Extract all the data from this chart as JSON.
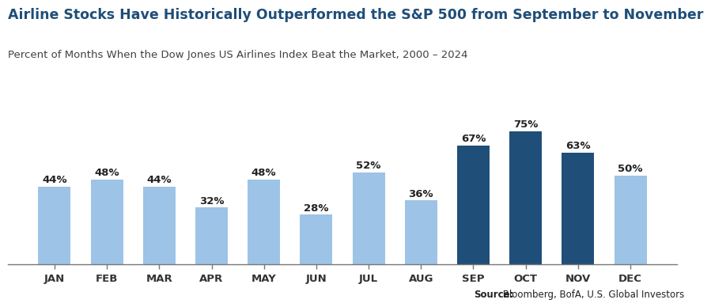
{
  "title": "Airline Stocks Have Historically Outperformed the S&P 500 from September to November",
  "subtitle": "Percent of Months When the Dow Jones US Airlines Index Beat the Market, 2000 – 2024",
  "source_bold": "Source:",
  "source_rest": " Bloomberg, BofA, U.S. Global Investors",
  "categories": [
    "JAN",
    "FEB",
    "MAR",
    "APR",
    "MAY",
    "JUN",
    "JUL",
    "AUG",
    "SEP",
    "OCT",
    "NOV",
    "DEC"
  ],
  "values": [
    44,
    48,
    44,
    32,
    48,
    28,
    52,
    36,
    67,
    75,
    63,
    50
  ],
  "highlight_months": [
    "SEP",
    "OCT",
    "NOV"
  ],
  "color_highlight": "#1f4e79",
  "color_normal": "#9dc3e6",
  "background_color": "#ffffff",
  "title_color": "#1f4e79",
  "subtitle_color": "#404040",
  "source_color": "#222222",
  "label_fontsize": 9.5,
  "title_fontsize": 12.5,
  "subtitle_fontsize": 9.5,
  "tick_fontsize": 9.5,
  "source_fontsize": 8.5,
  "ylim": [
    0,
    88
  ]
}
